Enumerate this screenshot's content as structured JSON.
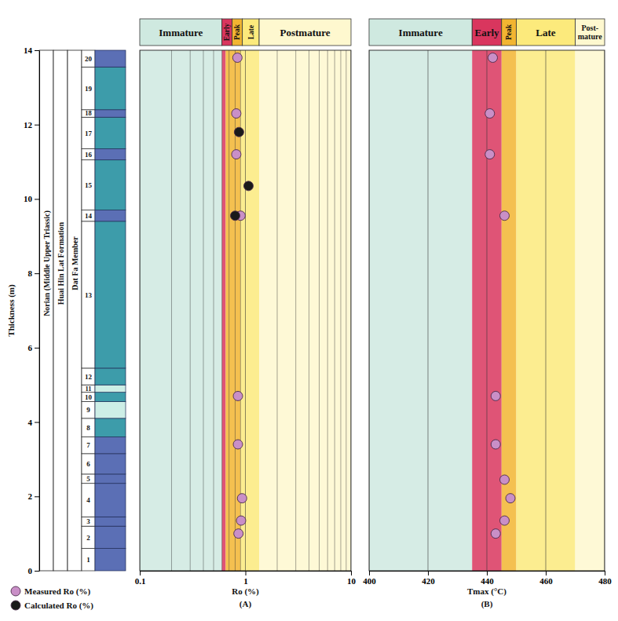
{
  "chart_data": [
    {
      "type": "stratigraphic_column",
      "ylabel": "Thickness (m)",
      "ylim": [
        0,
        14
      ],
      "yticks": [
        0,
        2,
        4,
        6,
        8,
        10,
        12,
        14
      ],
      "units": [
        "Norian (Middle Upper Triassic)",
        "Huai Hin Lat Formation",
        "Dat Fa Member"
      ],
      "beds": {
        "labels": [
          1,
          2,
          3,
          4,
          5,
          6,
          7,
          8,
          9,
          10,
          11,
          12,
          13,
          14,
          15,
          16,
          17,
          18,
          19,
          20
        ],
        "boundaries": [
          0,
          0.6,
          1.2,
          1.45,
          2.35,
          2.6,
          3.15,
          3.6,
          4.1,
          4.55,
          4.8,
          5.0,
          5.45,
          9.4,
          9.7,
          11.05,
          11.35,
          12.2,
          12.4,
          13.55,
          14
        ],
        "colors": [
          "#5b6fb5",
          "#5b6fb5",
          "#5b6fb5",
          "#5b6fb5",
          "#5b6fb5",
          "#5b6fb5",
          "#5b6fb5",
          "#3d9caa",
          "#cdeee6",
          "#3d9caa",
          "#cdeee6",
          "#3d9caa",
          "#3d9caa",
          "#5b6fb5",
          "#3d9caa",
          "#5b6fb5",
          "#3d9caa",
          "#5b6fb5",
          "#3d9caa",
          "#5b6fb5"
        ]
      }
    },
    {
      "type": "scatter",
      "xlabel": "Ro (%)",
      "panel_label": "(A)",
      "log": "x",
      "xlim": [
        0.1,
        10
      ],
      "xticks": [
        0.1,
        1,
        10
      ],
      "minor_xticks": [
        0.2,
        0.3,
        0.4,
        0.5,
        0.6,
        0.7,
        0.8,
        0.9,
        2,
        3,
        4,
        5,
        6,
        7,
        8,
        9
      ],
      "ylim": [
        0,
        14
      ],
      "tick_labels": "x",
      "grid": true,
      "legend": "bottom-left",
      "zones": {
        "labels": [
          "Immature",
          "Early",
          "Peak",
          "Late",
          "Postmature"
        ],
        "edges": [
          0.1,
          0.6,
          0.65,
          0.9,
          1.35,
          10
        ],
        "colors": [
          "#cfe9e0",
          "#d9365e",
          "#f2b531",
          "#fcea7c",
          "#fef8cf"
        ]
      },
      "series": [
        {
          "name": "Measured Ro (%)",
          "color": "#c98fc7",
          "marker": "circle",
          "x": [
            0.84,
            0.82,
            0.82,
            0.9,
            0.85,
            0.85,
            0.93,
            0.91,
            0.86
          ],
          "values": [
            13.8,
            12.3,
            11.2,
            9.55,
            4.7,
            3.4,
            1.95,
            1.35,
            1.0
          ]
        },
        {
          "name": "Calculated Ro (%)",
          "color": "#1a1a1a",
          "marker": "circle",
          "x": [
            0.87,
            1.07,
            0.8
          ],
          "values": [
            11.8,
            10.35,
            9.55
          ]
        }
      ]
    },
    {
      "type": "scatter",
      "xlabel": "Tmax (°C)",
      "panel_label": "(B)",
      "xlim": [
        400,
        480
      ],
      "xticks": [
        400,
        420,
        440,
        460,
        480
      ],
      "ylim": [
        0,
        14
      ],
      "tick_labels": "x",
      "grid": true,
      "zones": {
        "labels": [
          "Immature",
          "Early",
          "Peak",
          "Late",
          "Post-mature"
        ],
        "edges": [
          400,
          435,
          445,
          450,
          470,
          480
        ],
        "colors": [
          "#cfe9e0",
          "#d9365e",
          "#f2b531",
          "#fcea7c",
          "#fef8cf"
        ]
      },
      "series": [
        {
          "color": "#c98fc7",
          "marker": "circle",
          "x": [
            442,
            441,
            441,
            446,
            443,
            443,
            446,
            448,
            446,
            443
          ],
          "values": [
            13.8,
            12.3,
            11.2,
            9.55,
            4.7,
            3.4,
            2.45,
            1.95,
            1.35,
            1.0
          ]
        }
      ]
    }
  ]
}
